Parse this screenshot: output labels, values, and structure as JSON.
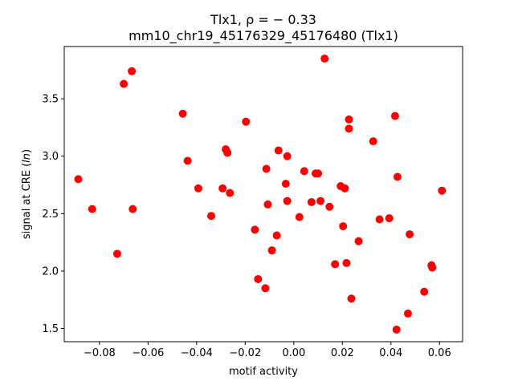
{
  "chart_data": {
    "type": "scatter",
    "title_line1": "Tlx1, ρ = − 0.33",
    "title_line2": "mm10_chr19_45176329_45176480 (Tlx1)",
    "xlabel": "motif activity",
    "ylabel": "signal at CRE (ln)",
    "xlim": [
      -0.0945,
      0.0695
    ],
    "ylim": [
      1.385,
      3.955
    ],
    "x_ticks": [
      -0.08,
      -0.06,
      -0.04,
      -0.02,
      0.0,
      0.02,
      0.04,
      0.06
    ],
    "x_tick_labels": [
      "−0.08",
      "−0.06",
      "−0.04",
      "−0.02",
      "0.00",
      "0.02",
      "0.04",
      "0.06"
    ],
    "y_ticks": [
      1.5,
      2.0,
      2.5,
      3.0,
      3.5
    ],
    "y_tick_labels": [
      "1.5",
      "2.0",
      "2.5",
      "3.0",
      "3.5"
    ],
    "grid": false,
    "marker_color": "#ff0000",
    "points": [
      {
        "x": -0.0887,
        "y": 2.8
      },
      {
        "x": -0.083,
        "y": 2.54
      },
      {
        "x": -0.0727,
        "y": 2.15
      },
      {
        "x": -0.07,
        "y": 3.63
      },
      {
        "x": -0.0667,
        "y": 3.74
      },
      {
        "x": -0.0663,
        "y": 2.54
      },
      {
        "x": -0.0457,
        "y": 3.37
      },
      {
        "x": -0.0437,
        "y": 2.96
      },
      {
        "x": -0.0393,
        "y": 2.72
      },
      {
        "x": -0.034,
        "y": 2.48
      },
      {
        "x": -0.0293,
        "y": 2.72
      },
      {
        "x": -0.028,
        "y": 3.06
      },
      {
        "x": -0.0273,
        "y": 3.03
      },
      {
        "x": -0.0263,
        "y": 2.68
      },
      {
        "x": -0.0197,
        "y": 3.3
      },
      {
        "x": -0.016,
        "y": 2.36
      },
      {
        "x": -0.0147,
        "y": 1.93
      },
      {
        "x": -0.0117,
        "y": 1.85
      },
      {
        "x": -0.0113,
        "y": 2.89
      },
      {
        "x": -0.0107,
        "y": 2.58
      },
      {
        "x": -0.009,
        "y": 2.18
      },
      {
        "x": -0.007,
        "y": 2.31
      },
      {
        "x": -0.0063,
        "y": 3.05
      },
      {
        "x": -0.0033,
        "y": 2.76
      },
      {
        "x": -0.0027,
        "y": 2.61
      },
      {
        "x": -0.0027,
        "y": 3.0
      },
      {
        "x": 0.0023,
        "y": 2.47
      },
      {
        "x": 0.0043,
        "y": 2.87
      },
      {
        "x": 0.0073,
        "y": 2.6
      },
      {
        "x": 0.009,
        "y": 2.85
      },
      {
        "x": 0.01,
        "y": 2.85
      },
      {
        "x": 0.011,
        "y": 2.61
      },
      {
        "x": 0.0127,
        "y": 3.85
      },
      {
        "x": 0.0147,
        "y": 2.56
      },
      {
        "x": 0.017,
        "y": 2.06
      },
      {
        "x": 0.0193,
        "y": 2.74
      },
      {
        "x": 0.0203,
        "y": 2.39
      },
      {
        "x": 0.021,
        "y": 2.72
      },
      {
        "x": 0.0217,
        "y": 2.07
      },
      {
        "x": 0.0227,
        "y": 3.32
      },
      {
        "x": 0.0227,
        "y": 3.24
      },
      {
        "x": 0.0237,
        "y": 1.76
      },
      {
        "x": 0.0267,
        "y": 2.26
      },
      {
        "x": 0.0327,
        "y": 3.13
      },
      {
        "x": 0.0353,
        "y": 2.45
      },
      {
        "x": 0.0393,
        "y": 2.46
      },
      {
        "x": 0.0417,
        "y": 3.35
      },
      {
        "x": 0.0423,
        "y": 1.49
      },
      {
        "x": 0.0427,
        "y": 2.82
      },
      {
        "x": 0.047,
        "y": 1.63
      },
      {
        "x": 0.0477,
        "y": 2.32
      },
      {
        "x": 0.0537,
        "y": 1.82
      },
      {
        "x": 0.0567,
        "y": 2.05
      },
      {
        "x": 0.057,
        "y": 2.03
      },
      {
        "x": 0.061,
        "y": 2.7
      }
    ]
  }
}
